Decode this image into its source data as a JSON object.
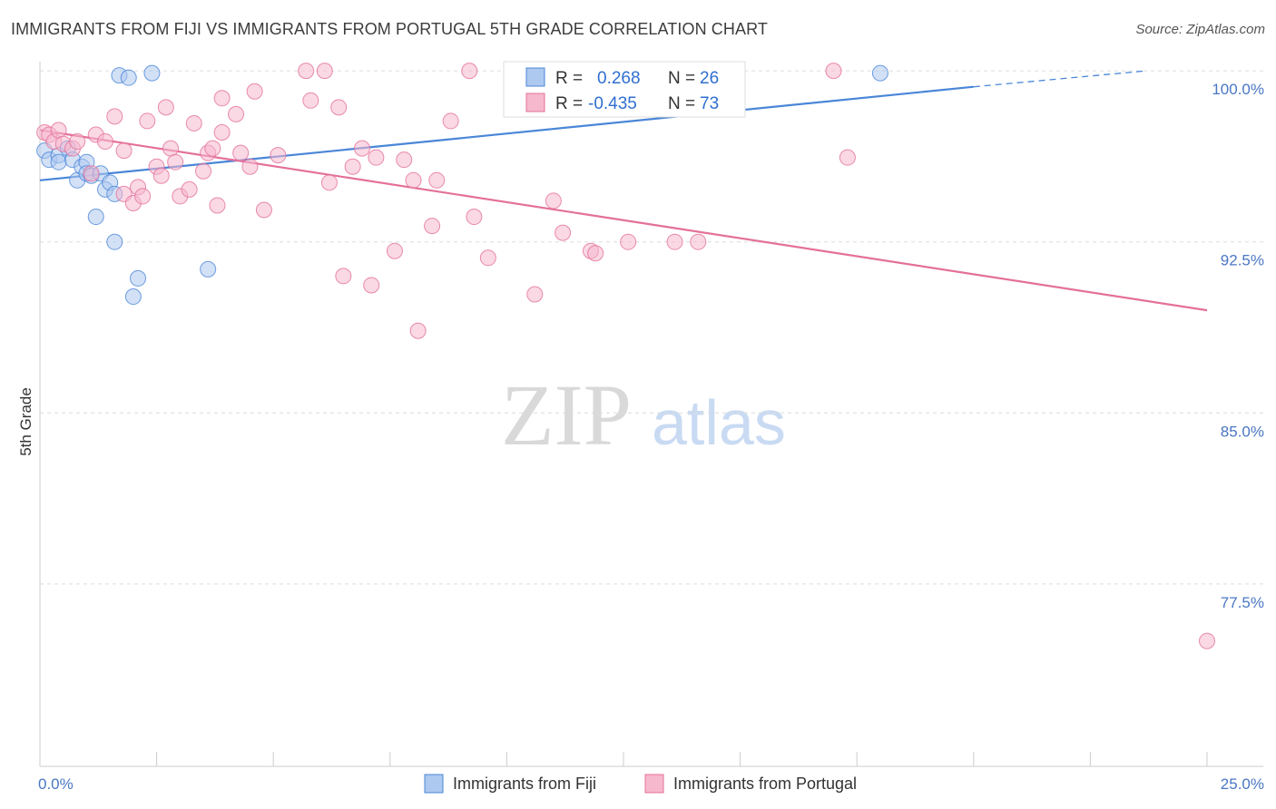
{
  "title": "IMMIGRANTS FROM FIJI VS IMMIGRANTS FROM PORTUGAL 5TH GRADE CORRELATION CHART",
  "source": "Source: ZipAtlas.com",
  "watermark": {
    "zip": "ZIP",
    "atlas": "atlas"
  },
  "chart_data": {
    "type": "scatter",
    "ylabel": "5th Grade",
    "xlim": [
      0,
      25
    ],
    "ylim": [
      69.5,
      100.8
    ],
    "x_tick_labels": [
      {
        "value": 0,
        "label": "0.0%"
      },
      {
        "value": 25,
        "label": "25.0%"
      }
    ],
    "x_minor_ticks": [
      2.5,
      5,
      7.5,
      10,
      12.5,
      15,
      17.5,
      20,
      22.5,
      25
    ],
    "y_ticks": [
      {
        "value": 100.0,
        "label": "100.0%"
      },
      {
        "value": 92.5,
        "label": "92.5%"
      },
      {
        "value": 85.0,
        "label": "85.0%"
      },
      {
        "value": 77.5,
        "label": "77.5%"
      }
    ],
    "grid": "horizontal dashed",
    "legend_placement": "top-center",
    "stats": [
      {
        "r_label": "R =",
        "r": "0.268",
        "n_label": "N =",
        "n": "26"
      },
      {
        "r_label": "R =",
        "r": "-0.435",
        "n_label": "N =",
        "n": "73"
      }
    ],
    "series": [
      {
        "name": "Immigrants from Fiji",
        "color": "#4a86d8",
        "fill": "#aec9ef",
        "trend": {
          "x0": 0,
          "y0": 95.2,
          "x1": 20,
          "y1": 99.3,
          "dash_to_x": 23.7,
          "dash_to_y": 100.0
        },
        "points": [
          [
            1.7,
            99.8
          ],
          [
            1.9,
            99.7
          ],
          [
            2.4,
            99.9
          ],
          [
            0.1,
            96.5
          ],
          [
            0.2,
            96.1
          ],
          [
            0.4,
            96.3
          ],
          [
            0.4,
            96.0
          ],
          [
            0.6,
            96.6
          ],
          [
            0.7,
            96.1
          ],
          [
            0.8,
            95.2
          ],
          [
            0.9,
            95.8
          ],
          [
            1.0,
            96.0
          ],
          [
            1.0,
            95.5
          ],
          [
            1.1,
            95.4
          ],
          [
            1.3,
            95.5
          ],
          [
            1.4,
            94.8
          ],
          [
            1.5,
            95.1
          ],
          [
            1.6,
            94.6
          ],
          [
            1.2,
            93.6
          ],
          [
            1.6,
            92.5
          ],
          [
            2.1,
            90.9
          ],
          [
            2.0,
            90.1
          ],
          [
            3.6,
            91.3
          ],
          [
            18.0,
            99.9
          ]
        ]
      },
      {
        "name": "Immigrants from Portugal",
        "color": "#e4709a",
        "fill": "#f6b8cd",
        "trend": {
          "x0": 0,
          "y0": 97.4,
          "x1": 25,
          "y1": 89.5
        },
        "points": [
          [
            0.1,
            97.3
          ],
          [
            0.2,
            97.2
          ],
          [
            0.3,
            96.9
          ],
          [
            0.4,
            97.4
          ],
          [
            0.5,
            96.8
          ],
          [
            0.7,
            96.6
          ],
          [
            0.8,
            96.9
          ],
          [
            1.1,
            95.5
          ],
          [
            1.2,
            97.2
          ],
          [
            1.4,
            96.9
          ],
          [
            1.6,
            98.0
          ],
          [
            1.8,
            94.6
          ],
          [
            1.8,
            96.5
          ],
          [
            2.0,
            94.2
          ],
          [
            2.1,
            94.9
          ],
          [
            2.2,
            94.5
          ],
          [
            2.3,
            97.8
          ],
          [
            2.5,
            95.8
          ],
          [
            2.6,
            95.4
          ],
          [
            2.7,
            98.4
          ],
          [
            2.8,
            96.6
          ],
          [
            2.9,
            96.0
          ],
          [
            3.0,
            94.5
          ],
          [
            3.2,
            94.8
          ],
          [
            3.3,
            97.7
          ],
          [
            3.5,
            95.6
          ],
          [
            3.6,
            96.4
          ],
          [
            3.7,
            96.6
          ],
          [
            3.8,
            94.1
          ],
          [
            3.9,
            97.3
          ],
          [
            3.9,
            98.8
          ],
          [
            4.2,
            98.1
          ],
          [
            4.3,
            96.4
          ],
          [
            4.5,
            95.8
          ],
          [
            4.6,
            99.1
          ],
          [
            4.8,
            93.9
          ],
          [
            5.1,
            96.3
          ],
          [
            5.7,
            100.0
          ],
          [
            5.8,
            98.7
          ],
          [
            6.1,
            100.0
          ],
          [
            6.2,
            95.1
          ],
          [
            6.4,
            98.4
          ],
          [
            6.5,
            91.0
          ],
          [
            6.7,
            95.8
          ],
          [
            6.9,
            96.6
          ],
          [
            7.1,
            90.6
          ],
          [
            7.2,
            96.2
          ],
          [
            7.6,
            92.1
          ],
          [
            7.8,
            96.1
          ],
          [
            8.0,
            95.2
          ],
          [
            8.1,
            88.6
          ],
          [
            8.4,
            93.2
          ],
          [
            8.5,
            95.2
          ],
          [
            8.8,
            97.8
          ],
          [
            9.2,
            100.0
          ],
          [
            9.3,
            93.6
          ],
          [
            9.6,
            91.8
          ],
          [
            10.6,
            90.2
          ],
          [
            11.0,
            94.3
          ],
          [
            11.2,
            92.9
          ],
          [
            11.8,
            92.1
          ],
          [
            11.9,
            92.0
          ],
          [
            12.6,
            92.5
          ],
          [
            13.6,
            92.5
          ],
          [
            14.1,
            92.5
          ],
          [
            17.0,
            100.0
          ],
          [
            17.3,
            96.2
          ],
          [
            25.0,
            75.0
          ]
        ]
      }
    ]
  }
}
